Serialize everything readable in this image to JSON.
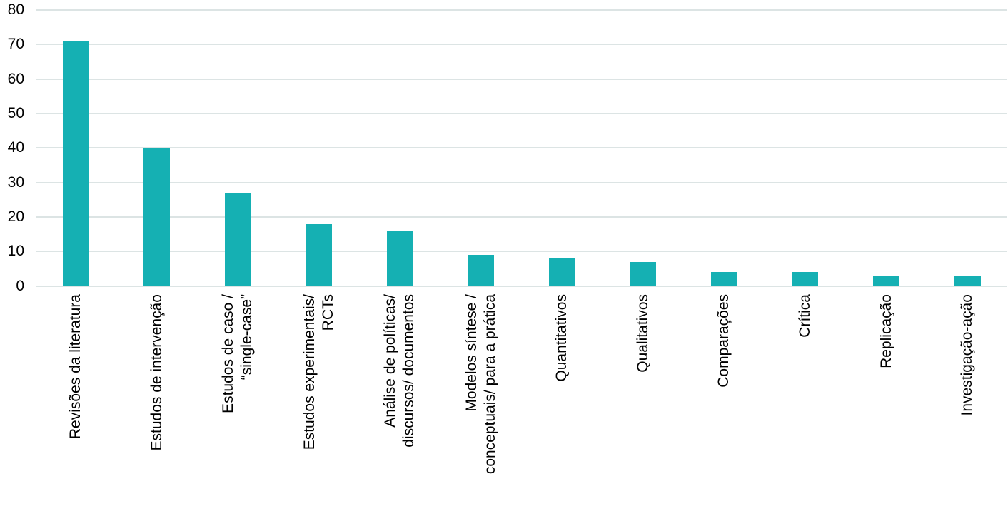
{
  "chart_data": {
    "type": "bar",
    "title": "",
    "xlabel": "",
    "ylabel": "",
    "categories": [
      "Revisões da literatura",
      "Estudos de intervenção",
      "Estudos de caso /\n“single-case”",
      "Estudos experimentais/\nRCTs",
      "Análise de políticas/\ndiscursos/ documentos",
      "Modelos síntese /\nconceptuais/ para a prática",
      "Quantitativos",
      "Qualitativos",
      "Comparações",
      "Crítica",
      "Replicação",
      "Investigação-ação"
    ],
    "values": [
      71,
      40,
      27,
      18,
      16,
      9,
      8,
      7,
      4,
      4,
      3,
      3
    ],
    "ylim": [
      0,
      80
    ],
    "yticks": [
      0,
      10,
      20,
      30,
      40,
      50,
      60,
      70,
      80
    ],
    "grid": true,
    "legend_position": "none",
    "bar_color": "#15B0B3",
    "gridline_color": "#dce4e4",
    "text_color": "#000000",
    "background_color": "#ffffff"
  }
}
